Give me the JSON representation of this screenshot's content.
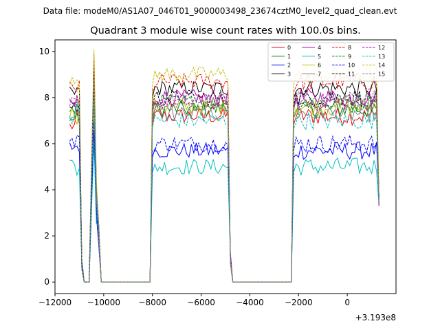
{
  "chart_data": {
    "type": "line",
    "suptitle": "Data file: modeM0/AS1A07_046T01_9000003498_23674cztM0_level2_quad_clean.evt",
    "title": "Quadrant 3 module wise count rates with 100.0s bins.",
    "xlabel": "",
    "ylabel": "",
    "x_offset_label": "+3.193e8",
    "xlim": [
      -12000,
      2000
    ],
    "ylim": [
      -0.5,
      10.5
    ],
    "xticks": [
      -12000,
      -10000,
      -8000,
      -6000,
      -4000,
      -2000,
      0
    ],
    "xtick_labels": [
      "−12000",
      "−10000",
      "−8000",
      "−6000",
      "−4000",
      "−2000",
      "0"
    ],
    "yticks": [
      0,
      2,
      4,
      6,
      8,
      10
    ],
    "ytick_labels": [
      "0",
      "2",
      "4",
      "6",
      "8",
      "10"
    ],
    "legend_position": "top-right",
    "segments": [
      {
        "name": "segment-1",
        "x_start": -11400,
        "x_end": -10900
      },
      {
        "name": "segment-2",
        "x_start": -10500,
        "x_end": -10200
      },
      {
        "name": "segment-3",
        "x_start": -8000,
        "x_end": -4800
      },
      {
        "name": "segment-4",
        "x_start": -2200,
        "x_end": 1300
      }
    ],
    "gap_plateau_value": 0,
    "series": [
      {
        "name": "0",
        "color": "#ff0000",
        "dash": "solid",
        "level": 7.2,
        "early": 6.7
      },
      {
        "name": "1",
        "color": "#008000",
        "dash": "solid",
        "level": 7.5,
        "early": 7.0
      },
      {
        "name": "2",
        "color": "#0000ff",
        "dash": "solid",
        "level": 5.7,
        "early": 5.8
      },
      {
        "name": "3",
        "color": "#000000",
        "dash": "solid",
        "level": 8.4,
        "early": 8.1
      },
      {
        "name": "4",
        "color": "#c000c0",
        "dash": "solid",
        "level": 8.0,
        "early": 7.6
      },
      {
        "name": "5",
        "color": "#00bfbf",
        "dash": "solid",
        "level": 5.0,
        "early": 5.1
      },
      {
        "name": "6",
        "color": "#bfbf00",
        "dash": "solid",
        "level": 7.6,
        "early": 7.3
      },
      {
        "name": "7",
        "color": "#808080",
        "dash": "solid",
        "level": 7.3,
        "early": 7.2
      },
      {
        "name": "8",
        "color": "#ff0000",
        "dash": "dashed",
        "level": 8.7,
        "early": 8.4
      },
      {
        "name": "9",
        "color": "#008000",
        "dash": "dashed",
        "level": 7.8,
        "early": 7.4
      },
      {
        "name": "10",
        "color": "#0000ff",
        "dash": "dashed",
        "level": 6.0,
        "early": 6.0
      },
      {
        "name": "11",
        "color": "#000000",
        "dash": "dashed",
        "level": 8.0,
        "early": 7.6
      },
      {
        "name": "12",
        "color": "#c000c0",
        "dash": "dashed",
        "level": 7.8,
        "early": 7.5
      },
      {
        "name": "13",
        "color": "#00bfbf",
        "dash": "dashed",
        "level": 7.0,
        "early": 7.1
      },
      {
        "name": "14",
        "color": "#bfbf00",
        "dash": "dashed",
        "level": 9.0,
        "early": 8.8
      },
      {
        "name": "15",
        "color": "#808080",
        "dash": "dashed",
        "level": 7.9,
        "early": 7.7
      }
    ]
  }
}
